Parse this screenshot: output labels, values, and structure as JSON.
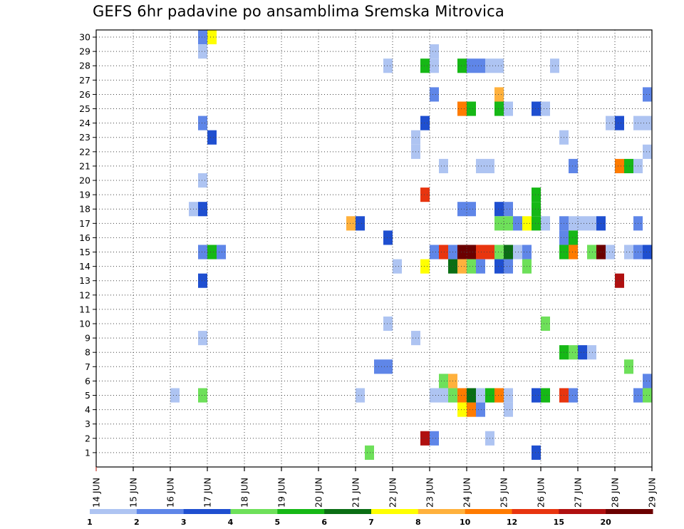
{
  "title": "GEFS 6hr padavine po ansamblima Sremska Mitrovica",
  "chart_data": {
    "type": "heatmap",
    "title": "GEFS 6hr padavine po ansamblima Sremska Mitrovica",
    "x_tick_labels": [
      "14 JUN",
      "15 JUN",
      "16 JUN",
      "17 JUN",
      "18 JUN",
      "19 JUN",
      "20 JUN",
      "21 JUN",
      "22 JUN",
      "23 JUN",
      "24 JUN",
      "25 JUN",
      "26 JUN",
      "27 JUN",
      "28 JUN",
      "29 JUN"
    ],
    "y_tick_labels": [
      "1",
      "2",
      "3",
      "4",
      "5",
      "6",
      "7",
      "8",
      "9",
      "10",
      "11",
      "12",
      "13",
      "14",
      "15",
      "16",
      "17",
      "18",
      "19",
      "20",
      "21",
      "22",
      "23",
      "24",
      "25",
      "26",
      "27",
      "28",
      "29",
      "30"
    ],
    "x_unit": "6-hour steps from 14 JUN",
    "xlim_steps": [
      0,
      60
    ],
    "ylim_members": [
      1,
      30
    ],
    "grid": "dotted",
    "colorbar": {
      "tick_labels": [
        "1",
        "2",
        "3",
        "4",
        "5",
        "6",
        "7",
        "8",
        "10",
        "12",
        "15",
        "20"
      ],
      "bins": [
        {
          "from": 1,
          "to": 2,
          "color": "#aec4f2"
        },
        {
          "from": 2,
          "to": 3,
          "color": "#5f86e8"
        },
        {
          "from": 3,
          "to": 4,
          "color": "#1f4fd0"
        },
        {
          "from": 4,
          "to": 5,
          "color": "#6ee05a"
        },
        {
          "from": 5,
          "to": 6,
          "color": "#16b816"
        },
        {
          "from": 6,
          "to": 7,
          "color": "#0a6e14"
        },
        {
          "from": 7,
          "to": 8,
          "color": "#ffff00"
        },
        {
          "from": 8,
          "to": 10,
          "color": "#ffb13d"
        },
        {
          "from": 10,
          "to": 12,
          "color": "#ff7b00"
        },
        {
          "from": 12,
          "to": 15,
          "color": "#e8350f"
        },
        {
          "from": 15,
          "to": 20,
          "color": "#b01010"
        },
        {
          "from": 20,
          "to": 30,
          "color": "#6b0000"
        }
      ]
    },
    "cells": [
      {
        "member": 30,
        "step": 11,
        "bin": 2
      },
      {
        "member": 30,
        "step": 12,
        "bin": 7
      },
      {
        "member": 29,
        "step": 11,
        "bin": 1
      },
      {
        "member": 29,
        "step": 36,
        "bin": 1
      },
      {
        "member": 28,
        "step": 31,
        "bin": 1
      },
      {
        "member": 28,
        "step": 35,
        "bin": 5
      },
      {
        "member": 28,
        "step": 36,
        "bin": 1
      },
      {
        "member": 28,
        "step": 39,
        "bin": 5
      },
      {
        "member": 28,
        "step": 40,
        "bin": 2
      },
      {
        "member": 28,
        "step": 41,
        "bin": 2
      },
      {
        "member": 28,
        "step": 42,
        "bin": 1
      },
      {
        "member": 28,
        "step": 43,
        "bin": 1
      },
      {
        "member": 28,
        "step": 49,
        "bin": 1
      },
      {
        "member": 26,
        "step": 36,
        "bin": 2
      },
      {
        "member": 26,
        "step": 43,
        "bin": 8
      },
      {
        "member": 26,
        "step": 59,
        "bin": 2
      },
      {
        "member": 25,
        "step": 39,
        "bin": 9
      },
      {
        "member": 25,
        "step": 40,
        "bin": 5
      },
      {
        "member": 25,
        "step": 43,
        "bin": 5
      },
      {
        "member": 25,
        "step": 44,
        "bin": 1
      },
      {
        "member": 25,
        "step": 47,
        "bin": 3
      },
      {
        "member": 25,
        "step": 48,
        "bin": 1
      },
      {
        "member": 24,
        "step": 11,
        "bin": 2
      },
      {
        "member": 24,
        "step": 35,
        "bin": 3
      },
      {
        "member": 24,
        "step": 55,
        "bin": 1
      },
      {
        "member": 24,
        "step": 56,
        "bin": 3
      },
      {
        "member": 24,
        "step": 58,
        "bin": 1
      },
      {
        "member": 24,
        "step": 59,
        "bin": 1
      },
      {
        "member": 23,
        "step": 12,
        "bin": 3
      },
      {
        "member": 23,
        "step": 34,
        "bin": 1
      },
      {
        "member": 23,
        "step": 50,
        "bin": 1
      },
      {
        "member": 22,
        "step": 34,
        "bin": 1
      },
      {
        "member": 22,
        "step": 59,
        "bin": 1
      },
      {
        "member": 21,
        "step": 37,
        "bin": 1
      },
      {
        "member": 21,
        "step": 41,
        "bin": 1
      },
      {
        "member": 21,
        "step": 42,
        "bin": 1
      },
      {
        "member": 21,
        "step": 51,
        "bin": 2
      },
      {
        "member": 21,
        "step": 56,
        "bin": 9
      },
      {
        "member": 21,
        "step": 57,
        "bin": 5
      },
      {
        "member": 21,
        "step": 58,
        "bin": 1
      },
      {
        "member": 20,
        "step": 11,
        "bin": 1
      },
      {
        "member": 19,
        "step": 35,
        "bin": 10
      },
      {
        "member": 19,
        "step": 47,
        "bin": 5
      },
      {
        "member": 18,
        "step": 10,
        "bin": 1
      },
      {
        "member": 18,
        "step": 11,
        "bin": 3
      },
      {
        "member": 18,
        "step": 39,
        "bin": 2
      },
      {
        "member": 18,
        "step": 40,
        "bin": 2
      },
      {
        "member": 18,
        "step": 43,
        "bin": 3
      },
      {
        "member": 18,
        "step": 44,
        "bin": 2
      },
      {
        "member": 18,
        "step": 47,
        "bin": 5
      },
      {
        "member": 17,
        "step": 27,
        "bin": 8
      },
      {
        "member": 17,
        "step": 28,
        "bin": 3
      },
      {
        "member": 17,
        "step": 43,
        "bin": 4
      },
      {
        "member": 17,
        "step": 44,
        "bin": 4
      },
      {
        "member": 17,
        "step": 45,
        "bin": 2
      },
      {
        "member": 17,
        "step": 46,
        "bin": 7
      },
      {
        "member": 17,
        "step": 47,
        "bin": 5
      },
      {
        "member": 17,
        "step": 48,
        "bin": 1
      },
      {
        "member": 17,
        "step": 50,
        "bin": 2
      },
      {
        "member": 17,
        "step": 51,
        "bin": 1
      },
      {
        "member": 17,
        "step": 52,
        "bin": 1
      },
      {
        "member": 17,
        "step": 53,
        "bin": 1
      },
      {
        "member": 17,
        "step": 54,
        "bin": 3
      },
      {
        "member": 17,
        "step": 58,
        "bin": 2
      },
      {
        "member": 16,
        "step": 31,
        "bin": 3
      },
      {
        "member": 16,
        "step": 50,
        "bin": 2
      },
      {
        "member": 16,
        "step": 51,
        "bin": 5
      },
      {
        "member": 15,
        "step": 11,
        "bin": 2
      },
      {
        "member": 15,
        "step": 12,
        "bin": 5
      },
      {
        "member": 15,
        "step": 13,
        "bin": 2
      },
      {
        "member": 15,
        "step": 36,
        "bin": 2
      },
      {
        "member": 15,
        "step": 37,
        "bin": 10
      },
      {
        "member": 15,
        "step": 38,
        "bin": 2
      },
      {
        "member": 15,
        "step": 39,
        "bin": 12
      },
      {
        "member": 15,
        "step": 40,
        "bin": 12
      },
      {
        "member": 15,
        "step": 41,
        "bin": 10
      },
      {
        "member": 15,
        "step": 42,
        "bin": 10
      },
      {
        "member": 15,
        "step": 43,
        "bin": 4
      },
      {
        "member": 15,
        "step": 44,
        "bin": 6
      },
      {
        "member": 15,
        "step": 45,
        "bin": 1
      },
      {
        "member": 15,
        "step": 46,
        "bin": 2
      },
      {
        "member": 15,
        "step": 50,
        "bin": 5
      },
      {
        "member": 15,
        "step": 51,
        "bin": 9
      },
      {
        "member": 15,
        "step": 53,
        "bin": 4
      },
      {
        "member": 15,
        "step": 54,
        "bin": 12
      },
      {
        "member": 15,
        "step": 55,
        "bin": 1
      },
      {
        "member": 15,
        "step": 57,
        "bin": 1
      },
      {
        "member": 15,
        "step": 58,
        "bin": 2
      },
      {
        "member": 15,
        "step": 59,
        "bin": 3
      },
      {
        "member": 14,
        "step": 32,
        "bin": 1
      },
      {
        "member": 14,
        "step": 35,
        "bin": 7
      },
      {
        "member": 14,
        "step": 38,
        "bin": 6
      },
      {
        "member": 14,
        "step": 39,
        "bin": 8
      },
      {
        "member": 14,
        "step": 40,
        "bin": 4
      },
      {
        "member": 14,
        "step": 41,
        "bin": 2
      },
      {
        "member": 14,
        "step": 43,
        "bin": 3
      },
      {
        "member": 14,
        "step": 44,
        "bin": 2
      },
      {
        "member": 14,
        "step": 46,
        "bin": 4
      },
      {
        "member": 13,
        "step": 11,
        "bin": 3
      },
      {
        "member": 13,
        "step": 56,
        "bin": 11
      },
      {
        "member": 10,
        "step": 31,
        "bin": 1
      },
      {
        "member": 10,
        "step": 48,
        "bin": 4
      },
      {
        "member": 9,
        "step": 11,
        "bin": 1
      },
      {
        "member": 9,
        "step": 34,
        "bin": 1
      },
      {
        "member": 8,
        "step": 50,
        "bin": 5
      },
      {
        "member": 8,
        "step": 51,
        "bin": 4
      },
      {
        "member": 8,
        "step": 52,
        "bin": 3
      },
      {
        "member": 8,
        "step": 53,
        "bin": 1
      },
      {
        "member": 7,
        "step": 30,
        "bin": 2
      },
      {
        "member": 7,
        "step": 31,
        "bin": 2
      },
      {
        "member": 7,
        "step": 57,
        "bin": 4
      },
      {
        "member": 6,
        "step": 37,
        "bin": 4
      },
      {
        "member": 6,
        "step": 38,
        "bin": 8
      },
      {
        "member": 6,
        "step": 59,
        "bin": 2
      },
      {
        "member": 5,
        "step": 8,
        "bin": 1
      },
      {
        "member": 5,
        "step": 11,
        "bin": 4
      },
      {
        "member": 5,
        "step": 28,
        "bin": 1
      },
      {
        "member": 5,
        "step": 36,
        "bin": 1
      },
      {
        "member": 5,
        "step": 37,
        "bin": 1
      },
      {
        "member": 5,
        "step": 38,
        "bin": 4
      },
      {
        "member": 5,
        "step": 39,
        "bin": 9
      },
      {
        "member": 5,
        "step": 40,
        "bin": 6
      },
      {
        "member": 5,
        "step": 41,
        "bin": 1
      },
      {
        "member": 5,
        "step": 42,
        "bin": 5
      },
      {
        "member": 5,
        "step": 43,
        "bin": 9
      },
      {
        "member": 5,
        "step": 44,
        "bin": 1
      },
      {
        "member": 5,
        "step": 47,
        "bin": 3
      },
      {
        "member": 5,
        "step": 48,
        "bin": 5
      },
      {
        "member": 5,
        "step": 50,
        "bin": 10
      },
      {
        "member": 5,
        "step": 51,
        "bin": 2
      },
      {
        "member": 5,
        "step": 58,
        "bin": 2
      },
      {
        "member": 5,
        "step": 59,
        "bin": 4
      },
      {
        "member": 4,
        "step": 39,
        "bin": 7
      },
      {
        "member": 4,
        "step": 40,
        "bin": 9
      },
      {
        "member": 4,
        "step": 41,
        "bin": 2
      },
      {
        "member": 4,
        "step": 44,
        "bin": 1
      },
      {
        "member": 2,
        "step": 35,
        "bin": 11
      },
      {
        "member": 2,
        "step": 36,
        "bin": 2
      },
      {
        "member": 2,
        "step": 42,
        "bin": 1
      },
      {
        "member": 1,
        "step": 29,
        "bin": 4
      },
      {
        "member": 1,
        "step": 47,
        "bin": 3
      }
    ]
  }
}
